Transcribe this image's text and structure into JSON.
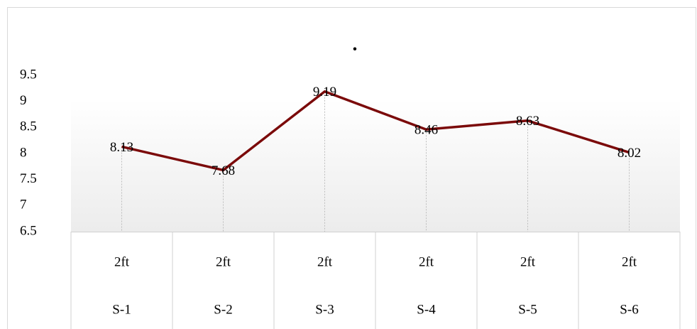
{
  "chart_data": {
    "type": "line",
    "categories": [
      "2ft",
      "2ft",
      "2ft",
      "2ft",
      "2ft",
      "2ft"
    ],
    "category_groups": [
      "S-1",
      "S-2",
      "S-3",
      "S-4",
      "S-5",
      "S-6"
    ],
    "series": [
      {
        "color": "#7b0a0a",
        "values": [
          8.13,
          7.68,
          9.19,
          8.46,
          8.63,
          8.02
        ]
      }
    ],
    "ylim": [
      6.5,
      9.5
    ],
    "yticks": [
      6.5,
      7,
      7.5,
      8,
      8.5,
      9,
      9.5
    ],
    "annotations": [
      "•"
    ],
    "data_labels": true,
    "drop_lines": true
  }
}
